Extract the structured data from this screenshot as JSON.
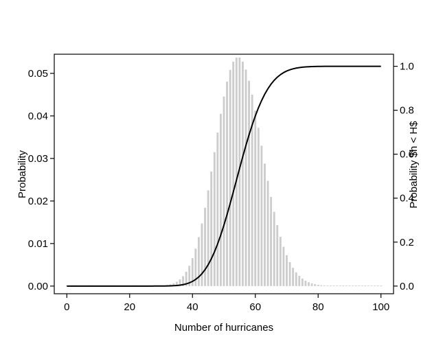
{
  "chart_data": {
    "type": "bar",
    "xlabel": "Number of hurricanes",
    "ylabel": "Probability",
    "y2label": "Probability $h < H$",
    "xlim": [
      -4,
      104
    ],
    "ylim": [
      -0.0018,
      0.0545
    ],
    "y2lim": [
      -0.0349,
      1.0549
    ],
    "xticks": [
      0,
      20,
      40,
      60,
      80,
      100
    ],
    "yticks": [
      "0.00",
      "0.01",
      "0.02",
      "0.03",
      "0.04",
      "0.05"
    ],
    "y2ticks": [
      "0.0",
      "0.2",
      "0.4",
      "0.6",
      "0.8",
      "1.0"
    ],
    "grid": false,
    "series": [
      {
        "type": "bar",
        "color": "#cccccc",
        "distribution": "poisson",
        "mean": 55,
        "x_range": [
          0,
          100
        ]
      },
      {
        "type": "line",
        "axis": "right",
        "color": "#000000",
        "cumulative_of": 0
      }
    ]
  }
}
